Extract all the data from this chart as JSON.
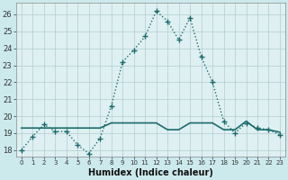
{
  "xlabel": "Humidex (Indice chaleur)",
  "ylabel": "",
  "bg_color": "#cce9ec",
  "plot_bg_color": "#dff0f2",
  "line_color": "#1a6b6b",
  "grid_color": "#b0cdd0",
  "x_ticks": [
    0,
    1,
    2,
    3,
    4,
    5,
    6,
    7,
    8,
    9,
    10,
    11,
    12,
    13,
    14,
    15,
    16,
    17,
    18,
    19,
    20,
    21,
    22,
    23
  ],
  "y_ticks": [
    18,
    19,
    20,
    21,
    22,
    23,
    24,
    25,
    26
  ],
  "ylim": [
    17.6,
    26.7
  ],
  "xlim": [
    -0.5,
    23.5
  ],
  "series1_x": [
    0,
    1,
    2,
    3,
    4,
    5,
    6,
    7,
    8,
    9,
    10,
    11,
    12,
    13,
    14,
    15,
    16,
    17,
    18,
    19,
    20,
    21,
    22,
    23
  ],
  "series1_y": [
    18.0,
    18.8,
    19.5,
    19.1,
    19.1,
    18.3,
    17.8,
    18.7,
    20.6,
    23.2,
    23.9,
    24.7,
    26.2,
    25.6,
    24.5,
    25.8,
    23.5,
    22.0,
    19.7,
    19.0,
    19.6,
    19.3,
    19.2,
    18.9
  ],
  "series2_x": [
    0,
    1,
    2,
    3,
    4,
    5,
    6,
    7,
    8,
    9,
    10,
    11,
    12,
    13,
    14,
    15,
    16,
    17,
    18,
    19,
    20,
    21,
    22,
    23
  ],
  "series2_y": [
    19.3,
    19.3,
    19.3,
    19.3,
    19.3,
    19.3,
    19.3,
    19.3,
    19.6,
    19.6,
    19.6,
    19.6,
    19.6,
    19.2,
    19.2,
    19.6,
    19.6,
    19.6,
    19.2,
    19.2,
    19.7,
    19.2,
    19.2,
    19.05
  ]
}
